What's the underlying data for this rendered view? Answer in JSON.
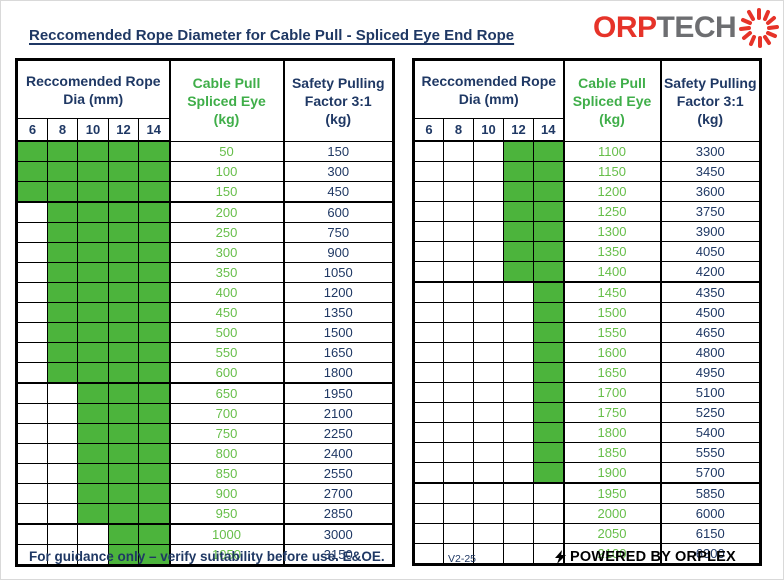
{
  "title": "Reccomended Rope Diameter for Cable Pull - Spliced Eye End Rope",
  "logo": {
    "text_red": "ORP",
    "text_gray": "TECH",
    "icon": "rope-burst-icon"
  },
  "colors": {
    "navy": "#1F3864",
    "green_fill": "#4CB43C",
    "green_header_text": "#3FAE49",
    "green_data_text": "#66BE49",
    "logo_red": "#E63329",
    "logo_gray": "#6D6E71"
  },
  "headers": {
    "dia_line1": "Reccomended Rope",
    "dia_line2": "Dia (mm)",
    "cable_line1": "Cable Pull",
    "cable_line2": "Spliced Eye",
    "cable_line3": "(kg)",
    "safety_line1": "Safety Pulling",
    "safety_line2": "Factor 3:1",
    "safety_line3": "(kg)",
    "dia_cols": [
      "6",
      "8",
      "10",
      "12",
      "14"
    ]
  },
  "dia_columns": [
    6,
    8,
    10,
    12,
    14
  ],
  "tables": [
    {
      "rows": [
        {
          "cable": "50",
          "safety": "150",
          "green": [
            6,
            8,
            10,
            12,
            14
          ],
          "sep": false
        },
        {
          "cable": "100",
          "safety": "300",
          "green": [
            6,
            8,
            10,
            12,
            14
          ],
          "sep": false
        },
        {
          "cable": "150",
          "safety": "450",
          "green": [
            6,
            8,
            10,
            12,
            14
          ],
          "sep": true
        },
        {
          "cable": "200",
          "safety": "600",
          "green": [
            8,
            10,
            12,
            14
          ],
          "sep": false
        },
        {
          "cable": "250",
          "safety": "750",
          "green": [
            8,
            10,
            12,
            14
          ],
          "sep": false
        },
        {
          "cable": "300",
          "safety": "900",
          "green": [
            8,
            10,
            12,
            14
          ],
          "sep": false
        },
        {
          "cable": "350",
          "safety": "1050",
          "green": [
            8,
            10,
            12,
            14
          ],
          "sep": false
        },
        {
          "cable": "400",
          "safety": "1200",
          "green": [
            8,
            10,
            12,
            14
          ],
          "sep": false
        },
        {
          "cable": "450",
          "safety": "1350",
          "green": [
            8,
            10,
            12,
            14
          ],
          "sep": false
        },
        {
          "cable": "500",
          "safety": "1500",
          "green": [
            8,
            10,
            12,
            14
          ],
          "sep": false
        },
        {
          "cable": "550",
          "safety": "1650",
          "green": [
            8,
            10,
            12,
            14
          ],
          "sep": false
        },
        {
          "cable": "600",
          "safety": "1800",
          "green": [
            8,
            10,
            12,
            14
          ],
          "sep": true
        },
        {
          "cable": "650",
          "safety": "1950",
          "green": [
            10,
            12,
            14
          ],
          "sep": false
        },
        {
          "cable": "700",
          "safety": "2100",
          "green": [
            10,
            12,
            14
          ],
          "sep": false
        },
        {
          "cable": "750",
          "safety": "2250",
          "green": [
            10,
            12,
            14
          ],
          "sep": false
        },
        {
          "cable": "800",
          "safety": "2400",
          "green": [
            10,
            12,
            14
          ],
          "sep": false
        },
        {
          "cable": "850",
          "safety": "2550",
          "green": [
            10,
            12,
            14
          ],
          "sep": false
        },
        {
          "cable": "900",
          "safety": "2700",
          "green": [
            10,
            12,
            14
          ],
          "sep": false
        },
        {
          "cable": "950",
          "safety": "2850",
          "green": [
            10,
            12,
            14
          ],
          "sep": true
        },
        {
          "cable": "1000",
          "safety": "3000",
          "green": [
            12,
            14
          ],
          "sep": false
        },
        {
          "cable": "1050",
          "safety": "3150",
          "green": [
            12,
            14
          ],
          "sep": false
        }
      ]
    },
    {
      "rows": [
        {
          "cable": "1100",
          "safety": "3300",
          "green": [
            12,
            14
          ],
          "sep": false
        },
        {
          "cable": "1150",
          "safety": "3450",
          "green": [
            12,
            14
          ],
          "sep": false
        },
        {
          "cable": "1200",
          "safety": "3600",
          "green": [
            12,
            14
          ],
          "sep": false
        },
        {
          "cable": "1250",
          "safety": "3750",
          "green": [
            12,
            14
          ],
          "sep": false
        },
        {
          "cable": "1300",
          "safety": "3900",
          "green": [
            12,
            14
          ],
          "sep": false
        },
        {
          "cable": "1350",
          "safety": "4050",
          "green": [
            12,
            14
          ],
          "sep": false
        },
        {
          "cable": "1400",
          "safety": "4200",
          "green": [
            12,
            14
          ],
          "sep": true
        },
        {
          "cable": "1450",
          "safety": "4350",
          "green": [
            14
          ],
          "sep": false
        },
        {
          "cable": "1500",
          "safety": "4500",
          "green": [
            14
          ],
          "sep": false
        },
        {
          "cable": "1550",
          "safety": "4650",
          "green": [
            14
          ],
          "sep": false
        },
        {
          "cable": "1600",
          "safety": "4800",
          "green": [
            14
          ],
          "sep": false
        },
        {
          "cable": "1650",
          "safety": "4950",
          "green": [
            14
          ],
          "sep": false
        },
        {
          "cable": "1700",
          "safety": "5100",
          "green": [
            14
          ],
          "sep": false
        },
        {
          "cable": "1750",
          "safety": "5250",
          "green": [
            14
          ],
          "sep": false
        },
        {
          "cable": "1800",
          "safety": "5400",
          "green": [
            14
          ],
          "sep": false
        },
        {
          "cable": "1850",
          "safety": "5550",
          "green": [
            14
          ],
          "sep": false
        },
        {
          "cable": "1900",
          "safety": "5700",
          "green": [
            14
          ],
          "sep": true
        },
        {
          "cable": "1950",
          "safety": "5850",
          "green": [],
          "sep": false
        },
        {
          "cable": "2000",
          "safety": "6000",
          "green": [],
          "sep": false
        },
        {
          "cable": "2050",
          "safety": "6150",
          "green": [],
          "sep": false
        },
        {
          "cable": "2100",
          "safety": "6300",
          "green": [],
          "sep": false
        }
      ]
    }
  ],
  "footer": {
    "disclaimer": "For guidance only – verify suitability before use. E&OE.",
    "version": "V2-25",
    "powered_by": "POWERED BY ORPLEX"
  }
}
